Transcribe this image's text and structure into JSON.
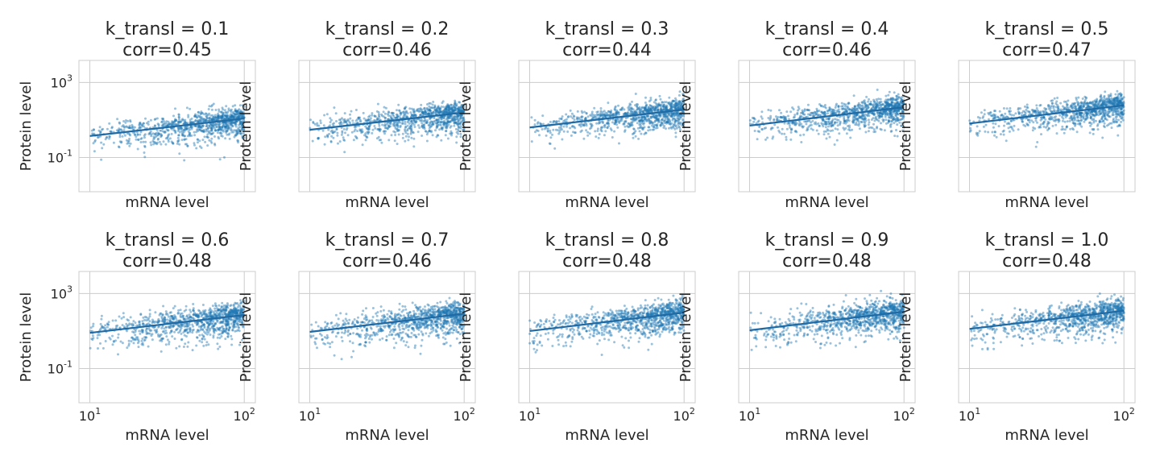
{
  "chart_data": [
    {
      "type": "scatter",
      "title": "k_transl = 0.1",
      "subtitle": "corr=0.45",
      "xlabel": "mRNA level",
      "ylabel": "Protein level",
      "k_transl": 0.1,
      "corr": 0.45,
      "xscale": "log",
      "yscale": "log",
      "xlim": [
        8.5,
        118
      ],
      "ylim": [
        0.0015,
        15000
      ],
      "xticks": [],
      "yticks": [
        "10^3",
        "10^-1"
      ],
      "yticks_values": [
        1000,
        0.1
      ],
      "fit_line": {
        "x": [
          10,
          100
        ],
        "y": [
          1.4,
          12
        ]
      },
      "point_density": {
        "center_y": 6,
        "spread_decades": 0.55,
        "n": 1000
      },
      "grid": true
    },
    {
      "type": "scatter",
      "title": "k_transl = 0.2",
      "subtitle": "corr=0.46",
      "xlabel": "mRNA level",
      "ylabel": "Protein level",
      "k_transl": 0.2,
      "corr": 0.46,
      "xscale": "log",
      "yscale": "log",
      "xlim": [
        8.5,
        118
      ],
      "ylim": [
        0.0015,
        15000
      ],
      "xticks": [],
      "yticks": [],
      "yticks_values": [
        1000,
        0.1
      ],
      "fit_line": {
        "x": [
          10,
          100
        ],
        "y": [
          3,
          25
        ]
      },
      "point_density": {
        "center_y": 12,
        "spread_decades": 0.55,
        "n": 1000
      },
      "grid": true
    },
    {
      "type": "scatter",
      "title": "k_transl = 0.3",
      "subtitle": "corr=0.44",
      "xlabel": "mRNA level",
      "ylabel": "Protein level",
      "k_transl": 0.3,
      "corr": 0.44,
      "xscale": "log",
      "yscale": "log",
      "xlim": [
        8.5,
        118
      ],
      "ylim": [
        0.0015,
        15000
      ],
      "xticks": [],
      "yticks": [],
      "yticks_values": [
        1000,
        0.1
      ],
      "fit_line": {
        "x": [
          10,
          100
        ],
        "y": [
          4,
          36
        ]
      },
      "point_density": {
        "center_y": 18,
        "spread_decades": 0.55,
        "n": 1000
      },
      "grid": true
    },
    {
      "type": "scatter",
      "title": "k_transl = 0.4",
      "subtitle": "corr=0.46",
      "xlabel": "mRNA level",
      "ylabel": "Protein level",
      "k_transl": 0.4,
      "corr": 0.46,
      "xscale": "log",
      "yscale": "log",
      "xlim": [
        8.5,
        118
      ],
      "ylim": [
        0.0015,
        15000
      ],
      "xticks": [],
      "yticks": [],
      "yticks_values": [
        1000,
        0.1
      ],
      "fit_line": {
        "x": [
          10,
          100
        ],
        "y": [
          5,
          48
        ]
      },
      "point_density": {
        "center_y": 24,
        "spread_decades": 0.55,
        "n": 1000
      },
      "grid": true
    },
    {
      "type": "scatter",
      "title": "k_transl = 0.5",
      "subtitle": "corr=0.47",
      "xlabel": "mRNA level",
      "ylabel": "Protein level",
      "k_transl": 0.5,
      "corr": 0.47,
      "xscale": "log",
      "yscale": "log",
      "xlim": [
        8.5,
        118
      ],
      "ylim": [
        0.0015,
        15000
      ],
      "xticks": [],
      "yticks": [],
      "yticks_values": [
        1000,
        0.1
      ],
      "fit_line": {
        "x": [
          10,
          100
        ],
        "y": [
          6.5,
          60
        ]
      },
      "point_density": {
        "center_y": 30,
        "spread_decades": 0.55,
        "n": 1000
      },
      "grid": true
    },
    {
      "type": "scatter",
      "title": "k_transl = 0.6",
      "subtitle": "corr=0.48",
      "xlabel": "mRNA level",
      "ylabel": "Protein level",
      "k_transl": 0.6,
      "corr": 0.48,
      "xscale": "log",
      "yscale": "log",
      "xlim": [
        8.5,
        118
      ],
      "ylim": [
        0.0015,
        15000
      ],
      "xticks": [
        "10^1",
        "10^2"
      ],
      "xticks_values": [
        10,
        100
      ],
      "yticks": [
        "10^3",
        "10^-1"
      ],
      "yticks_values": [
        1000,
        0.1
      ],
      "fit_line": {
        "x": [
          10,
          100
        ],
        "y": [
          8,
          72
        ]
      },
      "point_density": {
        "center_y": 36,
        "spread_decades": 0.6,
        "n": 1000
      },
      "grid": true
    },
    {
      "type": "scatter",
      "title": "k_transl = 0.7",
      "subtitle": "corr=0.46",
      "xlabel": "mRNA level",
      "ylabel": "Protein level",
      "k_transl": 0.7,
      "corr": 0.46,
      "xscale": "log",
      "yscale": "log",
      "xlim": [
        8.5,
        118
      ],
      "ylim": [
        0.0015,
        15000
      ],
      "xticks": [
        "10^1",
        "10^2"
      ],
      "xticks_values": [
        10,
        100
      ],
      "yticks": [],
      "yticks_values": [
        1000,
        0.1
      ],
      "fit_line": {
        "x": [
          10,
          100
        ],
        "y": [
          9,
          84
        ]
      },
      "point_density": {
        "center_y": 42,
        "spread_decades": 0.6,
        "n": 1000
      },
      "grid": true
    },
    {
      "type": "scatter",
      "title": "k_transl = 0.8",
      "subtitle": "corr=0.48",
      "xlabel": "mRNA level",
      "ylabel": "Protein level",
      "k_transl": 0.8,
      "corr": 0.48,
      "xscale": "log",
      "yscale": "log",
      "xlim": [
        8.5,
        118
      ],
      "ylim": [
        0.0015,
        15000
      ],
      "xticks": [
        "10^1",
        "10^2"
      ],
      "xticks_values": [
        10,
        100
      ],
      "yticks": [],
      "yticks_values": [
        1000,
        0.1
      ],
      "fit_line": {
        "x": [
          10,
          100
        ],
        "y": [
          10,
          96
        ]
      },
      "point_density": {
        "center_y": 48,
        "spread_decades": 0.6,
        "n": 1000
      },
      "grid": true
    },
    {
      "type": "scatter",
      "title": "k_transl = 0.9",
      "subtitle": "corr=0.48",
      "xlabel": "mRNA level",
      "ylabel": "Protein level",
      "k_transl": 0.9,
      "corr": 0.48,
      "xscale": "log",
      "yscale": "log",
      "xlim": [
        8.5,
        118
      ],
      "ylim": [
        0.0015,
        15000
      ],
      "xticks": [
        "10^1",
        "10^2"
      ],
      "xticks_values": [
        10,
        100
      ],
      "yticks": [],
      "yticks_values": [
        1000,
        0.1
      ],
      "fit_line": {
        "x": [
          10,
          100
        ],
        "y": [
          11,
          108
        ]
      },
      "point_density": {
        "center_y": 54,
        "spread_decades": 0.6,
        "n": 1000
      },
      "grid": true
    },
    {
      "type": "scatter",
      "title": "k_transl = 1.0",
      "subtitle": "corr=0.48",
      "xlabel": "mRNA level",
      "ylabel": "Protein level",
      "k_transl": 1.0,
      "corr": 0.48,
      "xscale": "log",
      "yscale": "log",
      "xlim": [
        8.5,
        118
      ],
      "ylim": [
        0.0015,
        15000
      ],
      "xticks": [
        "10^1",
        "10^2"
      ],
      "xticks_values": [
        10,
        100
      ],
      "yticks": [],
      "yticks_values": [
        1000,
        0.1
      ],
      "fit_line": {
        "x": [
          10,
          100
        ],
        "y": [
          13,
          120
        ]
      },
      "point_density": {
        "center_y": 60,
        "spread_decades": 0.6,
        "n": 1000
      },
      "grid": true
    }
  ],
  "colors": {
    "points": "#1f77b4",
    "fit": "#1f6aa5",
    "grid": "#cccccc",
    "text": "#262626"
  }
}
